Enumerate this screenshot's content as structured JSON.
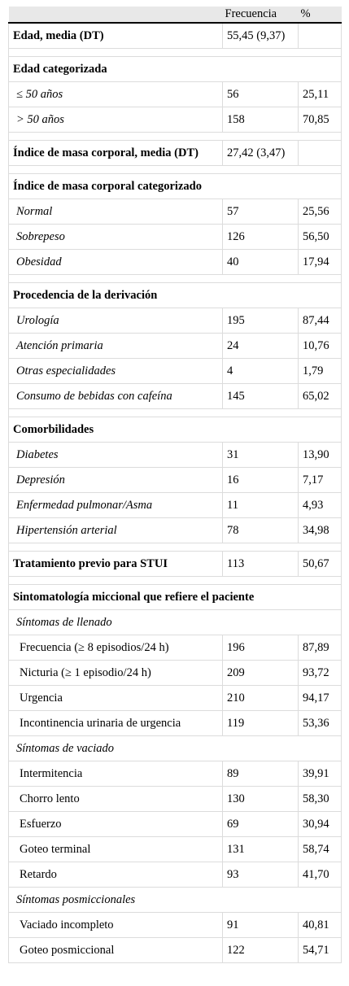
{
  "header": {
    "col1": "",
    "col2": "Frecuencia",
    "col3": "%"
  },
  "rows": [
    {
      "kind": "bold",
      "label": "Edad, media (DT)",
      "freq": "55,45 (9,37)",
      "pct": ""
    },
    {
      "kind": "spacer"
    },
    {
      "kind": "section",
      "label": "Edad categorizada"
    },
    {
      "kind": "sub",
      "label": "≤ 50 años",
      "freq": "56",
      "pct": "25,11"
    },
    {
      "kind": "sub",
      "label": "> 50 años",
      "freq": "158",
      "pct": "70,85"
    },
    {
      "kind": "spacer"
    },
    {
      "kind": "bold",
      "label": "Índice de masa corporal, media (DT)",
      "freq": "27,42 (3,47)",
      "pct": ""
    },
    {
      "kind": "spacer"
    },
    {
      "kind": "section",
      "label": "Índice de masa corporal categorizado"
    },
    {
      "kind": "sub",
      "label": "Normal",
      "freq": "57",
      "pct": "25,56"
    },
    {
      "kind": "sub",
      "label": "Sobrepeso",
      "freq": "126",
      "pct": "56,50"
    },
    {
      "kind": "sub",
      "label": "Obesidad",
      "freq": "40",
      "pct": "17,94"
    },
    {
      "kind": "spacer"
    },
    {
      "kind": "section",
      "label": "Procedencia de la derivación"
    },
    {
      "kind": "sub",
      "label": "Urología",
      "freq": "195",
      "pct": "87,44"
    },
    {
      "kind": "sub",
      "label": "Atención primaria",
      "freq": "24",
      "pct": "10,76"
    },
    {
      "kind": "sub",
      "label": "Otras especialidades",
      "freq": "4",
      "pct": "1,79"
    },
    {
      "kind": "sub",
      "label": "Consumo de bebidas con cafeína",
      "freq": "145",
      "pct": "65,02"
    },
    {
      "kind": "spacer"
    },
    {
      "kind": "section",
      "label": "Comorbilidades"
    },
    {
      "kind": "sub",
      "label": "Diabetes",
      "freq": "31",
      "pct": "13,90"
    },
    {
      "kind": "sub",
      "label": "Depresión",
      "freq": "16",
      "pct": "7,17"
    },
    {
      "kind": "sub",
      "label": "Enfermedad pulmonar/Asma",
      "freq": "11",
      "pct": "4,93"
    },
    {
      "kind": "sub",
      "label": "Hipertensión arterial",
      "freq": "78",
      "pct": "34,98"
    },
    {
      "kind": "spacer"
    },
    {
      "kind": "bold",
      "label": "Tratamiento previo para STUI",
      "freq": "113",
      "pct": "50,67"
    },
    {
      "kind": "spacer"
    },
    {
      "kind": "section",
      "label": "Sintomatología miccional que refiere el paciente"
    },
    {
      "kind": "subhead",
      "label": "Síntomas de llenado"
    },
    {
      "kind": "item",
      "label": "Frecuencia (≥ 8 episodios/24 h)",
      "freq": "196",
      "pct": "87,89"
    },
    {
      "kind": "item",
      "label": "Nicturia (≥ 1 episodio/24 h)",
      "freq": "209",
      "pct": "93,72"
    },
    {
      "kind": "item",
      "label": "Urgencia",
      "freq": "210",
      "pct": "94,17"
    },
    {
      "kind": "item",
      "label": "Incontinencia urinaria de urgencia",
      "freq": "119",
      "pct": "53,36"
    },
    {
      "kind": "subhead",
      "label": "Síntomas de vaciado"
    },
    {
      "kind": "item",
      "label": "Intermitencia",
      "freq": "89",
      "pct": "39,91"
    },
    {
      "kind": "item",
      "label": "Chorro lento",
      "freq": "130",
      "pct": "58,30"
    },
    {
      "kind": "item",
      "label": "Esfuerzo",
      "freq": "69",
      "pct": "30,94"
    },
    {
      "kind": "item",
      "label": "Goteo terminal",
      "freq": "131",
      "pct": "58,74"
    },
    {
      "kind": "item",
      "label": "Retardo",
      "freq": "93",
      "pct": "41,70"
    },
    {
      "kind": "subhead",
      "label": "Síntomas posmiccionales"
    },
    {
      "kind": "item",
      "label": "Vaciado incompleto",
      "freq": "91",
      "pct": "40,81"
    },
    {
      "kind": "item",
      "label": "Goteo posmiccional",
      "freq": "122",
      "pct": "54,71"
    }
  ]
}
